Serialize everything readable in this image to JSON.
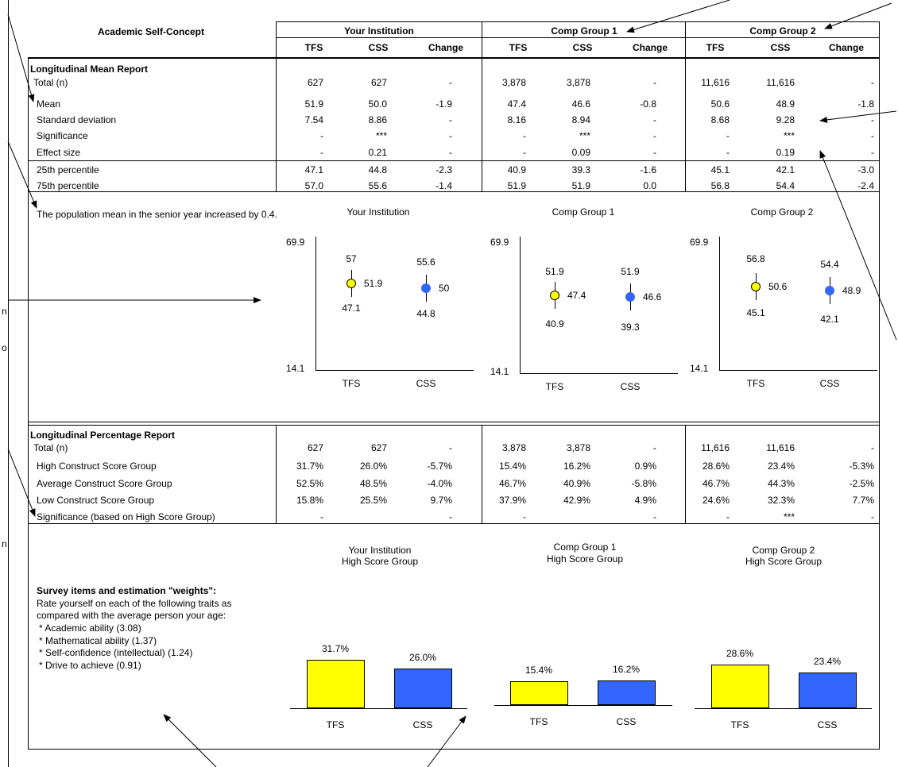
{
  "header": {
    "title": "Academic Self-Concept",
    "groups": [
      "Your Institution",
      "Comp Group 1",
      "Comp Group 2"
    ],
    "subcols": [
      "TFS",
      "CSS",
      "Change"
    ]
  },
  "mean_report": {
    "title": "Longitudinal Mean Report",
    "rows": [
      {
        "label": "Total (n)",
        "cells": [
          "627",
          "627",
          "-",
          "3,878",
          "3,878",
          "-",
          "11,616",
          "11,616",
          "-"
        ]
      },
      {
        "label": "Mean",
        "cells": [
          "51.9",
          "50.0",
          "-1.9",
          "47.4",
          "46.6",
          "-0.8",
          "50.6",
          "48.9",
          "-1.8"
        ]
      },
      {
        "label": "Standard deviation",
        "cells": [
          "7.54",
          "8.86",
          "-",
          "8.16",
          "8.94",
          "-",
          "8.68",
          "9.28",
          "-"
        ]
      },
      {
        "label": "Significance",
        "cells": [
          "-",
          "***",
          "-",
          "-",
          "***",
          "-",
          "-",
          "***",
          "-"
        ]
      },
      {
        "label": "Effect size",
        "cells": [
          "-",
          "0.21",
          "-",
          "-",
          "0.09",
          "-",
          "-",
          "0.19",
          "-"
        ]
      },
      {
        "label": "25th percentile",
        "cells": [
          "47.1",
          "44.8",
          "-2.3",
          "40.9",
          "39.3",
          "-1.6",
          "45.1",
          "42.1",
          "-3.0"
        ]
      },
      {
        "label": "75th percentile",
        "cells": [
          "57.0",
          "55.6",
          "-1.4",
          "51.9",
          "51.9",
          "0.0",
          "56.8",
          "54.4",
          "-2.4"
        ]
      }
    ]
  },
  "mean_note": "The population mean in the senior year increased by 0.4.",
  "pct_report": {
    "title": "Longitudinal Percentage Report",
    "rows": [
      {
        "label": "Total (n)",
        "cells": [
          "627",
          "627",
          "-",
          "3,878",
          "3,878",
          "-",
          "11,616",
          "11,616",
          "-"
        ]
      },
      {
        "label": "High Construct Score Group",
        "cells": [
          "31.7%",
          "26.0%",
          "-5.7%",
          "15.4%",
          "16.2%",
          "0.9%",
          "28.6%",
          "23.4%",
          "-5.3%"
        ]
      },
      {
        "label": "Average Construct Score Group",
        "cells": [
          "52.5%",
          "48.5%",
          "-4.0%",
          "46.7%",
          "40.9%",
          "-5.8%",
          "46.7%",
          "44.3%",
          "-2.5%"
        ]
      },
      {
        "label": "Low Construct Score Group",
        "cells": [
          "15.8%",
          "25.5%",
          "9.7%",
          "37.9%",
          "42.9%",
          "4.9%",
          "24.6%",
          "32.3%",
          "7.7%"
        ]
      },
      {
        "label": "Significance (based on High Score Group)",
        "cells": [
          "-",
          "",
          "-",
          "-",
          "",
          "-",
          "-",
          "***",
          "-"
        ]
      }
    ]
  },
  "survey": {
    "heading": "Survey items and estimation \"weights\":",
    "intro1": "Rate yourself on each of the following traits as",
    "intro2": "compared with the average person your age:",
    "items": [
      "* Academic ability (3.08)",
      "* Mathematical ability (1.37)",
      "* Self-confidence (intellectual) (1.24)",
      "* Drive to achieve (0.91)"
    ]
  },
  "colors": {
    "tfs": "#ffff00",
    "css": "#3366ff"
  },
  "chart_data": [
    {
      "type": "scatter",
      "title": "Your Institution",
      "ylim": [
        14.1,
        69.9
      ],
      "categories": [
        "TFS",
        "CSS"
      ],
      "mean": [
        51.9,
        50.0
      ],
      "p75": [
        57.0,
        55.6
      ],
      "p25": [
        47.1,
        44.8
      ]
    },
    {
      "type": "scatter",
      "title": "Comp Group 1",
      "ylim": [
        14.1,
        69.9
      ],
      "categories": [
        "TFS",
        "CSS"
      ],
      "mean": [
        47.4,
        46.6
      ],
      "p75": [
        51.9,
        51.9
      ],
      "p25": [
        40.9,
        39.3
      ]
    },
    {
      "type": "scatter",
      "title": "Comp Group 2",
      "ylim": [
        14.1,
        69.9
      ],
      "categories": [
        "TFS",
        "CSS"
      ],
      "mean": [
        50.6,
        48.9
      ],
      "p75": [
        56.8,
        54.4
      ],
      "p25": [
        45.1,
        42.1
      ]
    },
    {
      "type": "bar",
      "title": "Your Institution",
      "subtitle": "High Score Group",
      "categories": [
        "TFS",
        "CSS"
      ],
      "values": [
        31.7,
        26.0
      ],
      "labels": [
        "31.7%",
        "26.0%"
      ]
    },
    {
      "type": "bar",
      "title": "Comp Group 1",
      "subtitle": "High Score Group",
      "categories": [
        "TFS",
        "CSS"
      ],
      "values": [
        15.4,
        16.2
      ],
      "labels": [
        "15.4%",
        "16.2%"
      ]
    },
    {
      "type": "bar",
      "title": "Comp Group 2",
      "subtitle": "High Score Group",
      "categories": [
        "TFS",
        "CSS"
      ],
      "values": [
        28.6,
        23.4
      ],
      "labels": [
        "28.6%",
        "23.4%"
      ]
    }
  ],
  "margin_fragments": [
    "n",
    "o",
    "n"
  ]
}
